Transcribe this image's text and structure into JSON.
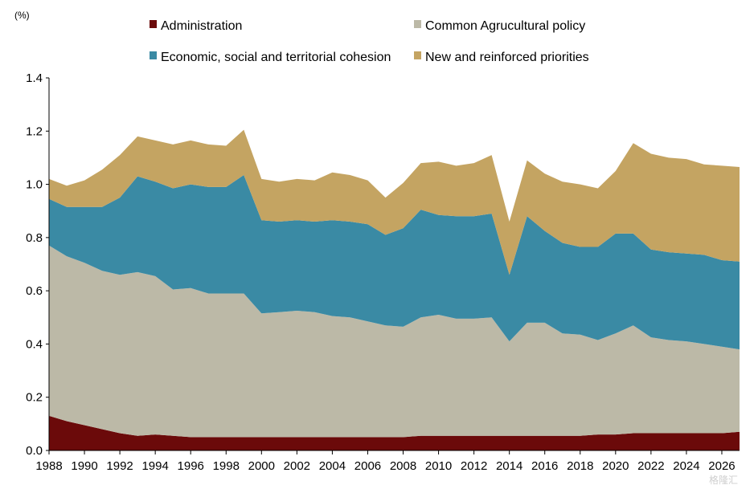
{
  "chart_data": {
    "type": "area",
    "stacked": true,
    "title": "",
    "unit_label": "(%)",
    "xlabel": "",
    "ylabel": "",
    "ylim": [
      0,
      1.4
    ],
    "y_ticks": [
      "0.0",
      "0.2",
      "0.4",
      "0.6",
      "0.8",
      "1.0",
      "1.2",
      "1.4"
    ],
    "y_tick_values": [
      0,
      0.2,
      0.4,
      0.6,
      0.8,
      1.0,
      1.2,
      1.4
    ],
    "xlim": [
      1988,
      2027
    ],
    "x_tick_labels": [
      "1988",
      "1990",
      "1992",
      "1994",
      "1996",
      "1998",
      "2000",
      "2002",
      "2004",
      "2006",
      "2008",
      "2010",
      "2012",
      "2014",
      "2016",
      "2018",
      "2020",
      "2022",
      "2024",
      "2026"
    ],
    "x_tick_values": [
      1988,
      1990,
      1992,
      1994,
      1996,
      1998,
      2000,
      2002,
      2004,
      2006,
      2008,
      2010,
      2012,
      2014,
      2016,
      2018,
      2020,
      2022,
      2024,
      2026
    ],
    "grid": false,
    "legend_position": "top",
    "x": [
      1988,
      1989,
      1990,
      1991,
      1992,
      1993,
      1994,
      1995,
      1996,
      1997,
      1998,
      1999,
      2000,
      2001,
      2002,
      2003,
      2004,
      2005,
      2006,
      2007,
      2008,
      2009,
      2010,
      2011,
      2012,
      2013,
      2014,
      2015,
      2016,
      2017,
      2018,
      2019,
      2020,
      2021,
      2022,
      2023,
      2024,
      2025,
      2026,
      2027
    ],
    "series": [
      {
        "name": "Administration",
        "color": "#6b0a0a",
        "values": [
          0.13,
          0.11,
          0.095,
          0.08,
          0.065,
          0.055,
          0.06,
          0.055,
          0.05,
          0.05,
          0.05,
          0.05,
          0.05,
          0.05,
          0.05,
          0.05,
          0.05,
          0.05,
          0.05,
          0.05,
          0.05,
          0.055,
          0.055,
          0.055,
          0.055,
          0.055,
          0.055,
          0.055,
          0.055,
          0.055,
          0.055,
          0.06,
          0.06,
          0.065,
          0.065,
          0.065,
          0.065,
          0.065,
          0.065,
          0.07
        ]
      },
      {
        "name": "Common Agrucultural policy",
        "color": "#bcb9a7",
        "values": [
          0.64,
          0.62,
          0.61,
          0.595,
          0.595,
          0.615,
          0.595,
          0.55,
          0.56,
          0.54,
          0.54,
          0.54,
          0.465,
          0.47,
          0.475,
          0.47,
          0.455,
          0.45,
          0.435,
          0.42,
          0.415,
          0.445,
          0.455,
          0.44,
          0.44,
          0.445,
          0.355,
          0.425,
          0.425,
          0.385,
          0.38,
          0.355,
          0.38,
          0.405,
          0.36,
          0.35,
          0.345,
          0.335,
          0.325,
          0.31
        ]
      },
      {
        "name": "Economic, social and territorial cohesion",
        "color": "#3a8aa4",
        "values": [
          0.175,
          0.185,
          0.21,
          0.24,
          0.29,
          0.36,
          0.355,
          0.38,
          0.39,
          0.4,
          0.4,
          0.445,
          0.35,
          0.34,
          0.34,
          0.34,
          0.36,
          0.36,
          0.365,
          0.34,
          0.37,
          0.405,
          0.375,
          0.385,
          0.385,
          0.39,
          0.25,
          0.4,
          0.345,
          0.34,
          0.33,
          0.35,
          0.375,
          0.345,
          0.33,
          0.33,
          0.33,
          0.335,
          0.325,
          0.33
        ]
      },
      {
        "name": "New and reinforced priorities",
        "color": "#c4a462",
        "values": [
          0.075,
          0.08,
          0.1,
          0.14,
          0.16,
          0.15,
          0.155,
          0.165,
          0.165,
          0.16,
          0.155,
          0.17,
          0.155,
          0.15,
          0.155,
          0.155,
          0.18,
          0.175,
          0.165,
          0.14,
          0.17,
          0.175,
          0.2,
          0.19,
          0.2,
          0.22,
          0.2,
          0.21,
          0.215,
          0.23,
          0.235,
          0.22,
          0.235,
          0.34,
          0.36,
          0.355,
          0.355,
          0.34,
          0.355,
          0.355
        ]
      }
    ]
  },
  "watermark": "格隆汇"
}
